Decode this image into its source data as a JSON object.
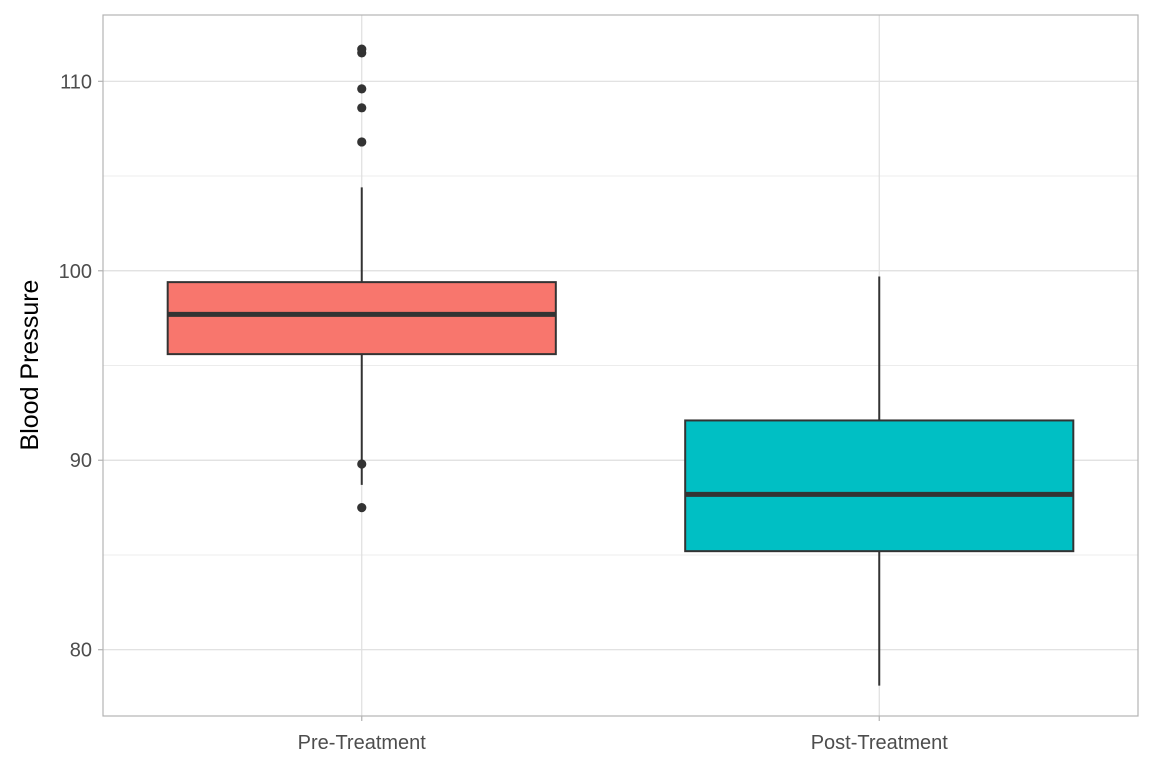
{
  "chart_data": {
    "type": "boxplot",
    "title": "",
    "xlabel": "",
    "ylabel": "Blood Pressure",
    "ylim": [
      76.5,
      113.5
    ],
    "y_ticks": [
      80,
      90,
      100,
      110
    ],
    "y_tick_labels": [
      "80",
      "90",
      "100",
      "110"
    ],
    "grid": true,
    "legend": "none",
    "categories": [
      "Pre-Treatment",
      "Post-Treatment"
    ],
    "boxes": [
      {
        "category": "Pre-Treatment",
        "color": "#F8766D",
        "whisker_low": 88.7,
        "q1": 95.6,
        "median": 97.7,
        "q3": 99.4,
        "whisker_high": 104.4,
        "outliers": [
          111.5,
          111.7,
          109.6,
          108.6,
          106.8,
          89.8,
          87.5
        ]
      },
      {
        "category": "Post-Treatment",
        "color": "#00BFC4",
        "whisker_low": 78.1,
        "q1": 85.2,
        "median": 88.2,
        "q3": 92.1,
        "whisker_high": 99.7,
        "outliers": []
      }
    ]
  },
  "style": {
    "panel_border_color": "#b3b3b3",
    "major_grid_color": "#dedede",
    "minor_grid_color": "#ececec",
    "box_outline_color": "#333333"
  }
}
